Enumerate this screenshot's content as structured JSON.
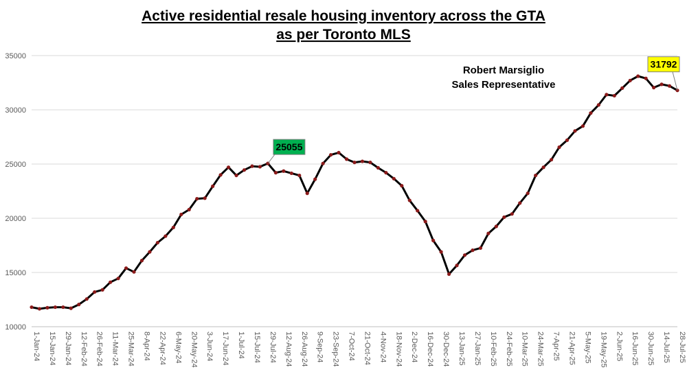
{
  "chart_data": {
    "type": "line",
    "title_line1": "Active residential resale housing inventory across the GTA",
    "title_line2": "as per Toronto MLS",
    "annotation_line1": "Robert Marsiglio",
    "annotation_line2": "Sales Representative",
    "ylim": [
      10000,
      35000
    ],
    "yticks": [
      "10000",
      "15000",
      "20000",
      "25000",
      "30000",
      "35000"
    ],
    "grid": true,
    "line_color": "#000000",
    "marker_color": "#8b1a1a",
    "x_labels": [
      "1-Jan-24",
      "15-Jan-24",
      "29-Jan-24",
      "12-Feb-24",
      "26-Feb-24",
      "11-Mar-24",
      "25-Mar-24",
      "8-Apr-24",
      "22-Apr-24",
      "6-May-24",
      "20-May-24",
      "3-Jun-24",
      "17-Jun-24",
      "1-Jul-24",
      "15-Jul-24",
      "29-Jul-24",
      "12-Aug-24",
      "26-Aug-24",
      "9-Sep-24",
      "23-Sep-24",
      "7-Oct-24",
      "21-Oct-24",
      "4-Nov-24",
      "18-Nov-24",
      "2-Dec-24",
      "16-Dec-24",
      "30-Dec-24",
      "13-Jan-25",
      "27-Jan-25",
      "10-Feb-25",
      "24-Feb-25",
      "10-Mar-25",
      "24-Mar-25",
      "7-Apr-25",
      "21-Apr-25",
      "5-May-25",
      "19-May-25",
      "2-Jun-25",
      "16-Jun-25",
      "30-Jun-25",
      "14-Jul-25",
      "28-Jul-25"
    ],
    "values": [
      11800,
      11650,
      11750,
      11800,
      11800,
      11700,
      12050,
      12550,
      13200,
      13400,
      14100,
      14450,
      15400,
      15050,
      16100,
      16900,
      17750,
      18350,
      19150,
      20350,
      20800,
      21800,
      21850,
      22950,
      24000,
      24700,
      23950,
      24450,
      24800,
      24750,
      25055,
      24200,
      24350,
      24150,
      23950,
      22300,
      23600,
      25050,
      25850,
      26050,
      25450,
      25150,
      25250,
      25150,
      24650,
      24200,
      23650,
      23000,
      21650,
      20700,
      19700,
      17950,
      16900,
      14850,
      15650,
      16600,
      17050,
      17250,
      18600,
      19250,
      20100,
      20400,
      21400,
      22300,
      23950,
      24700,
      25400,
      26550,
      27200,
      28050,
      28500,
      29700,
      30450,
      31400,
      31300,
      32000,
      32700,
      33100,
      32900,
      32050,
      32350,
      32200,
      31792
    ],
    "callouts": [
      {
        "label": "25055",
        "index": 30,
        "bg": "#00b050"
      },
      {
        "label": "31792",
        "index": 82,
        "bg": "#ffff00"
      }
    ]
  }
}
